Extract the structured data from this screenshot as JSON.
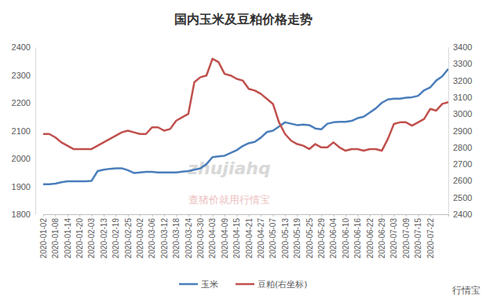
{
  "chart_data": {
    "type": "line",
    "title": "国内玉米及豆粕价格走势",
    "annotations": [
      "zhujiahq",
      "查猪价就用行情宝",
      "行情宝"
    ],
    "categories": [
      "2020-01-02",
      null,
      "2020-01-08",
      null,
      "2020-01-14",
      null,
      "2020-01-20",
      null,
      "2020-02-03",
      null,
      "2020-02-13",
      null,
      "2020-02-19",
      null,
      "2020-02-25",
      null,
      "2020-03-02",
      null,
      "2020-03-06",
      null,
      "2020-03-12",
      null,
      "2020-03-18",
      null,
      "2020-03-24",
      null,
      "2020-03-30",
      null,
      "2020-04-03",
      null,
      "2020-04-09",
      null,
      "2020-04-15",
      null,
      "2020-04-21",
      null,
      "2020-04-27",
      null,
      "2020-05-07",
      null,
      "2020-05-13",
      null,
      "2020-05-19",
      null,
      "2020-05-25",
      null,
      "2020-05-29",
      null,
      "2020-06-04",
      null,
      "2020-06-10",
      null,
      "2020-06-16",
      null,
      "2020-06-22",
      null,
      "2020-06-29",
      null,
      "2020-07-03",
      null,
      "2020-07-09",
      null,
      "2020-07-15",
      null,
      "2020-07-22",
      null,
      null,
      null
    ],
    "series": [
      {
        "name": "玉米",
        "color": "#4a7ebb",
        "axis": "y",
        "values": [
          1908,
          1908,
          1910,
          1915,
          1918,
          1918,
          1918,
          1918,
          1920,
          1955,
          1960,
          1963,
          1965,
          1965,
          1958,
          1948,
          1950,
          1952,
          1952,
          1950,
          1950,
          1950,
          1950,
          1953,
          1955,
          1960,
          1965,
          1980,
          2005,
          2008,
          2010,
          2020,
          2030,
          2045,
          2055,
          2060,
          2075,
          2095,
          2100,
          2115,
          2130,
          2125,
          2120,
          2122,
          2120,
          2108,
          2105,
          2125,
          2130,
          2132,
          2132,
          2135,
          2145,
          2150,
          2165,
          2180,
          2200,
          2212,
          2215,
          2215,
          2218,
          2220,
          2225,
          2245,
          2255,
          2280,
          2295,
          2322
        ]
      },
      {
        "name": "豆粕(右坐标)",
        "color": "#c0504d",
        "axis": "y2",
        "values": [
          2880,
          2880,
          2860,
          2830,
          2810,
          2790,
          2790,
          2790,
          2790,
          2810,
          2830,
          2850,
          2870,
          2890,
          2900,
          2890,
          2880,
          2880,
          2920,
          2920,
          2900,
          2910,
          2960,
          2980,
          3000,
          3190,
          3220,
          3230,
          3330,
          3310,
          3240,
          3230,
          3210,
          3200,
          3150,
          3140,
          3120,
          3090,
          3060,
          2950,
          2880,
          2840,
          2820,
          2810,
          2790,
          2820,
          2800,
          2800,
          2830,
          2800,
          2780,
          2790,
          2790,
          2780,
          2790,
          2790,
          2780,
          2850,
          2940,
          2950,
          2950,
          2930,
          2950,
          2970,
          3030,
          3020,
          3060,
          3070
        ]
      }
    ],
    "ylim": [
      1800,
      2400
    ],
    "yticks": [
      1800,
      1900,
      2000,
      2100,
      2200,
      2300,
      2400
    ],
    "y2lim": [
      2400,
      3400
    ],
    "y2ticks": [
      2400,
      2500,
      2600,
      2700,
      2800,
      2900,
      3000,
      3100,
      3200,
      3300,
      3400
    ],
    "grid": false,
    "legend": "bottom"
  }
}
